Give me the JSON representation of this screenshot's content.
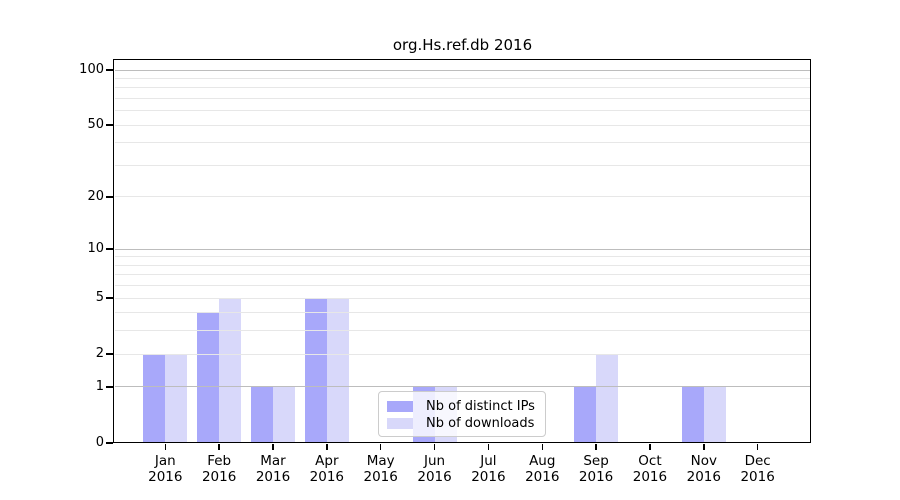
{
  "chart_data": {
    "type": "bar",
    "title": "org.Hs.ref.db 2016",
    "categories": [
      "Jan",
      "Feb",
      "Mar",
      "Apr",
      "May",
      "Jun",
      "Jul",
      "Aug",
      "Sep",
      "Oct",
      "Nov",
      "Dec"
    ],
    "year": "2016",
    "series": [
      {
        "name": "Nb of distinct IPs",
        "color": "#a8a8fa",
        "values": [
          2,
          4,
          1,
          5,
          0,
          1,
          0,
          0,
          1,
          0,
          1,
          0
        ]
      },
      {
        "name": "Nb of downloads",
        "color": "#d8d8fa",
        "values": [
          2,
          5,
          1,
          5,
          0,
          1,
          0,
          0,
          2,
          0,
          1,
          0
        ]
      }
    ],
    "yscale": "log1p",
    "ylim": [
      0,
      113
    ],
    "yticks": [
      0,
      1,
      2,
      5,
      10,
      20,
      50,
      100
    ],
    "gridlines": {
      "emphasized": [
        1,
        10,
        100
      ],
      "regular": [
        2,
        3,
        4,
        5,
        6,
        7,
        8,
        9,
        20,
        30,
        40,
        50,
        60,
        70,
        80,
        90
      ]
    },
    "grid_emphasized_color": "#bdbdbd",
    "grid_regular_color": "#e7e7e7",
    "legend_position": "inside-bottom-center",
    "xlabel": "",
    "ylabel": ""
  }
}
